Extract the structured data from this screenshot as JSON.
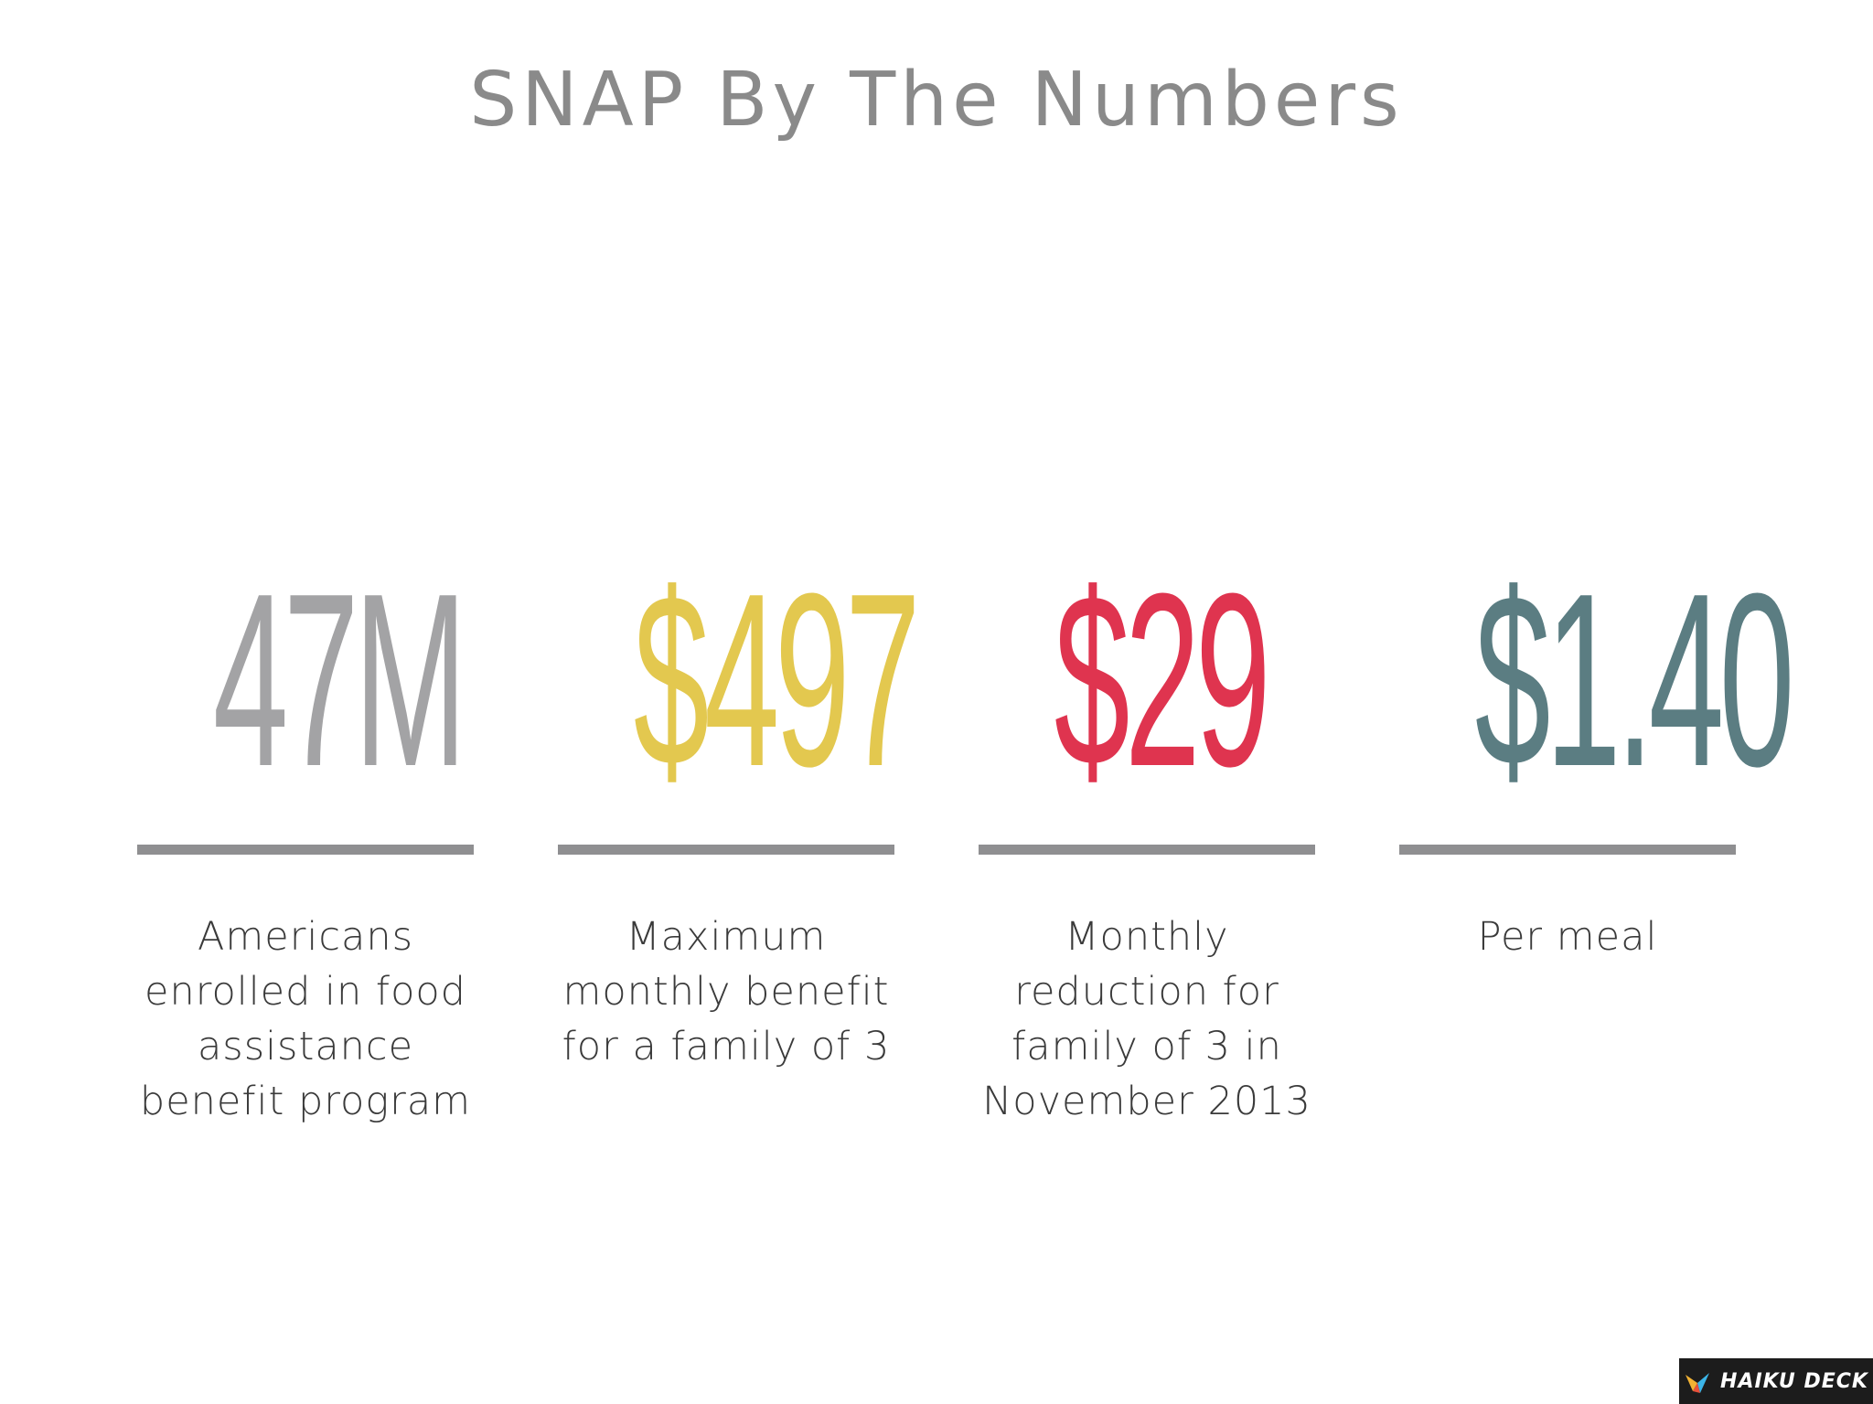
{
  "title": "SNAP By The Numbers",
  "stats": [
    {
      "value": "47M",
      "label": "Americans enrolled in food assistance benefit program",
      "color": "#a3a3a5"
    },
    {
      "value": "$497",
      "label": "Maximum monthly benefit for a family of 3",
      "color": "#e3c84f"
    },
    {
      "value": "$29",
      "label": "Monthly reduction for family of 3 in November 2013",
      "color": "#df344f"
    },
    {
      "value": "$1.40",
      "label": "Per meal",
      "color": "#5b7d82"
    }
  ],
  "branding": {
    "text": "HAIKU DECK",
    "icon": "haiku-deck-logo-icon"
  },
  "colors": {
    "title": "#8a8a8a",
    "divider": "#8f8f91",
    "label": "#3a3a3a",
    "badge_bg": "#1c1c1c"
  }
}
